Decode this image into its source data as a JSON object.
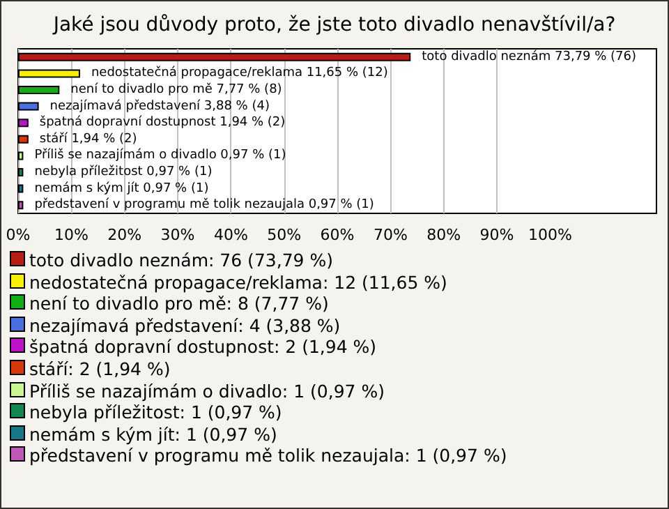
{
  "chart_data": {
    "type": "bar",
    "orientation": "horizontal",
    "title": "Jaké jsou důvody proto, že jste toto divadlo nenavštívil/a?",
    "categories": [
      "toto divadlo neznám",
      "nedostatečná propagace/reklama",
      "není to divadlo pro mě",
      "nezajímavá představení",
      "špatná dopravní dostupnost",
      "stáří",
      "Příliš se nazajímám o divadlo",
      "nebyla příležitost",
      "nemám s kým jít",
      "představení v programu mě tolik nezaujala"
    ],
    "values": [
      73.79,
      11.65,
      7.77,
      3.88,
      1.94,
      1.94,
      0.97,
      0.97,
      0.97,
      0.97
    ],
    "colors": [
      "#b81c14",
      "#f8f000",
      "#10b010",
      "#4870e0",
      "#c010c8",
      "#d83808",
      "#c8f890",
      "#108850",
      "#187888",
      "#c058b8"
    ],
    "value_labels": [
      "73,79 % (76)",
      "11,65 % (12)",
      "7,77 % (8)",
      "3,88 % (4)",
      "1,94 % (2)",
      "1,94 % (2)",
      "0,97 % (1)",
      "0,97 % (1)",
      "0,97 % (1)",
      "0,97 % (1)"
    ],
    "xlim": [
      0,
      120
    ],
    "xticks": [
      {
        "value": 0,
        "label": "0%"
      },
      {
        "value": 10,
        "label": "10%"
      },
      {
        "value": 20,
        "label": "20%"
      },
      {
        "value": 30,
        "label": "30%"
      },
      {
        "value": 40,
        "label": "40%"
      },
      {
        "value": 50,
        "label": "50%"
      },
      {
        "value": 60,
        "label": "60%"
      },
      {
        "value": 70,
        "label": "70%"
      },
      {
        "value": 80,
        "label": "80%"
      },
      {
        "value": 90,
        "label": "90%"
      },
      {
        "value": 100,
        "label": "100%"
      }
    ],
    "grid": "x",
    "annotations": [
      "toto divadlo neznám: 76 (73,79 %)",
      "nedostatečná propagace/reklama: 12 (11,65 %)",
      "není to divadlo pro mě: 8 (7,77 %)",
      "nezajímavá představení: 4 (3,88 %)",
      "špatná dopravní dostupnost: 2 (1,94 %)",
      "stáří: 2 (1,94 %)",
      "Příliš se nazajímám o divadlo: 1 (0,97 %)",
      "nebyla příležitost: 1 (0,97 %)",
      "nemám s kým jít: 1 (0,97 %)",
      "představení v programu mě tolik nezaujala: 1 (0,97 %)"
    ]
  }
}
